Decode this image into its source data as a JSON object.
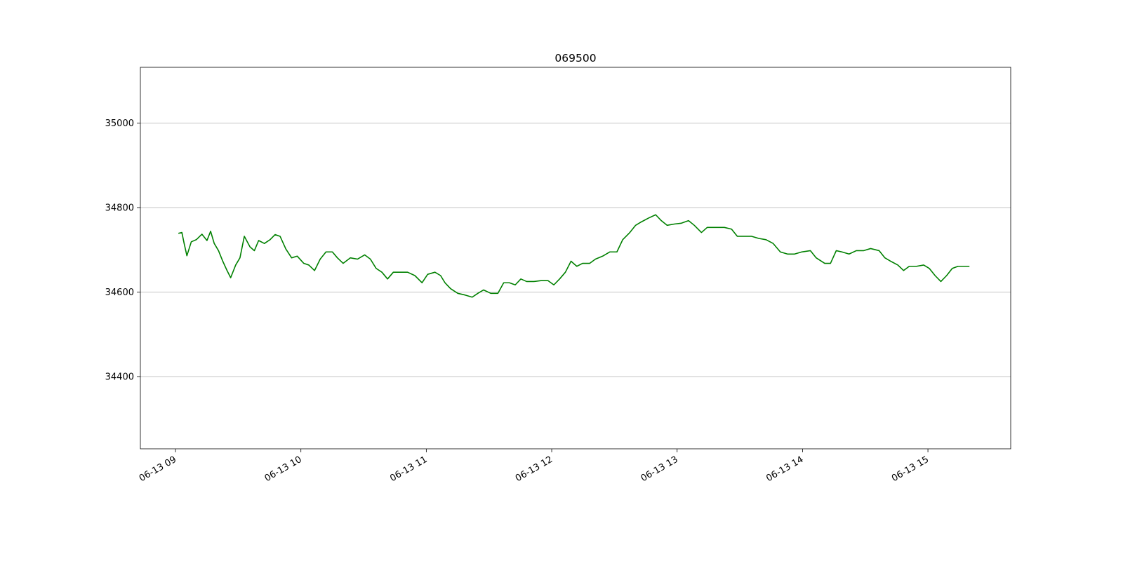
{
  "chart_data": {
    "type": "line",
    "title": "069500",
    "x": [
      9.023,
      9.051,
      9.069,
      9.091,
      9.126,
      9.166,
      9.211,
      9.251,
      9.28,
      9.309,
      9.343,
      9.377,
      9.411,
      9.44,
      9.48,
      9.514,
      9.549,
      9.594,
      9.629,
      9.663,
      9.709,
      9.754,
      9.794,
      9.834,
      9.88,
      9.926,
      9.971,
      10.023,
      10.063,
      10.109,
      10.154,
      10.2,
      10.251,
      10.291,
      10.337,
      10.394,
      10.451,
      10.509,
      10.554,
      10.6,
      10.646,
      10.691,
      10.737,
      10.794,
      10.851,
      10.909,
      10.966,
      11.011,
      11.069,
      11.114,
      11.149,
      11.194,
      11.251,
      11.309,
      11.366,
      11.411,
      11.457,
      11.514,
      11.571,
      11.617,
      11.663,
      11.709,
      11.754,
      11.8,
      11.857,
      11.914,
      11.971,
      12.017,
      12.063,
      12.109,
      12.154,
      12.2,
      12.246,
      12.303,
      12.349,
      12.406,
      12.463,
      12.52,
      12.566,
      12.623,
      12.669,
      12.714,
      12.771,
      12.829,
      12.874,
      12.92,
      12.977,
      13.034,
      13.091,
      13.137,
      13.194,
      13.24,
      13.309,
      13.377,
      13.434,
      13.48,
      13.537,
      13.594,
      13.651,
      13.709,
      13.766,
      13.823,
      13.88,
      13.937,
      13.994,
      14.063,
      14.109,
      14.177,
      14.223,
      14.269,
      14.314,
      14.371,
      14.429,
      14.486,
      14.543,
      14.611,
      14.657,
      14.703,
      14.76,
      14.806,
      14.851,
      14.909,
      14.966,
      15.011,
      15.057,
      15.103,
      15.149,
      15.194,
      15.24,
      15.286,
      15.331
    ],
    "series": [
      {
        "color": "#008000",
        "values": [
          34739,
          34741,
          34715,
          34686,
          34719,
          34724,
          34737,
          34722,
          34744,
          34715,
          34698,
          34673,
          34651,
          34634,
          34664,
          34681,
          34732,
          34707,
          34698,
          34722,
          34715,
          34724,
          34736,
          34732,
          34702,
          34681,
          34685,
          34668,
          34664,
          34651,
          34678,
          34695,
          34695,
          34681,
          34668,
          34681,
          34678,
          34688,
          34678,
          34656,
          34647,
          34631,
          34647,
          34647,
          34647,
          34639,
          34622,
          34642,
          34647,
          34639,
          34622,
          34608,
          34597,
          34593,
          34588,
          34597,
          34605,
          34597,
          34597,
          34622,
          34622,
          34617,
          34631,
          34625,
          34625,
          34627,
          34627,
          34617,
          34631,
          34647,
          34673,
          34661,
          34668,
          34668,
          34678,
          34685,
          34695,
          34695,
          34724,
          34741,
          34758,
          34766,
          34775,
          34783,
          34769,
          34758,
          34761,
          34763,
          34769,
          34758,
          34741,
          34753,
          34753,
          34753,
          34749,
          34732,
          34732,
          34732,
          34727,
          34724,
          34715,
          34695,
          34690,
          34690,
          34695,
          34698,
          34681,
          34668,
          34668,
          34698,
          34695,
          34690,
          34698,
          34698,
          34703,
          34698,
          34681,
          34673,
          34664,
          34651,
          34661,
          34661,
          34664,
          34656,
          34639,
          34625,
          34639,
          34656,
          34661,
          34661,
          34661
        ]
      }
    ],
    "xlim": [
      8.72,
      15.66
    ],
    "xticks": [
      {
        "value": 9,
        "label": "06-13 09"
      },
      {
        "value": 10,
        "label": "06-13 10"
      },
      {
        "value": 11,
        "label": "06-13 11"
      },
      {
        "value": 12,
        "label": "06-13 12"
      },
      {
        "value": 13,
        "label": "06-13 13"
      },
      {
        "value": 14,
        "label": "06-13 14"
      },
      {
        "value": 15,
        "label": "06-13 15"
      }
    ],
    "ylim": [
      34229,
      35132
    ],
    "yticks": [
      34400,
      34600,
      34800,
      35000
    ],
    "grid": "y"
  }
}
